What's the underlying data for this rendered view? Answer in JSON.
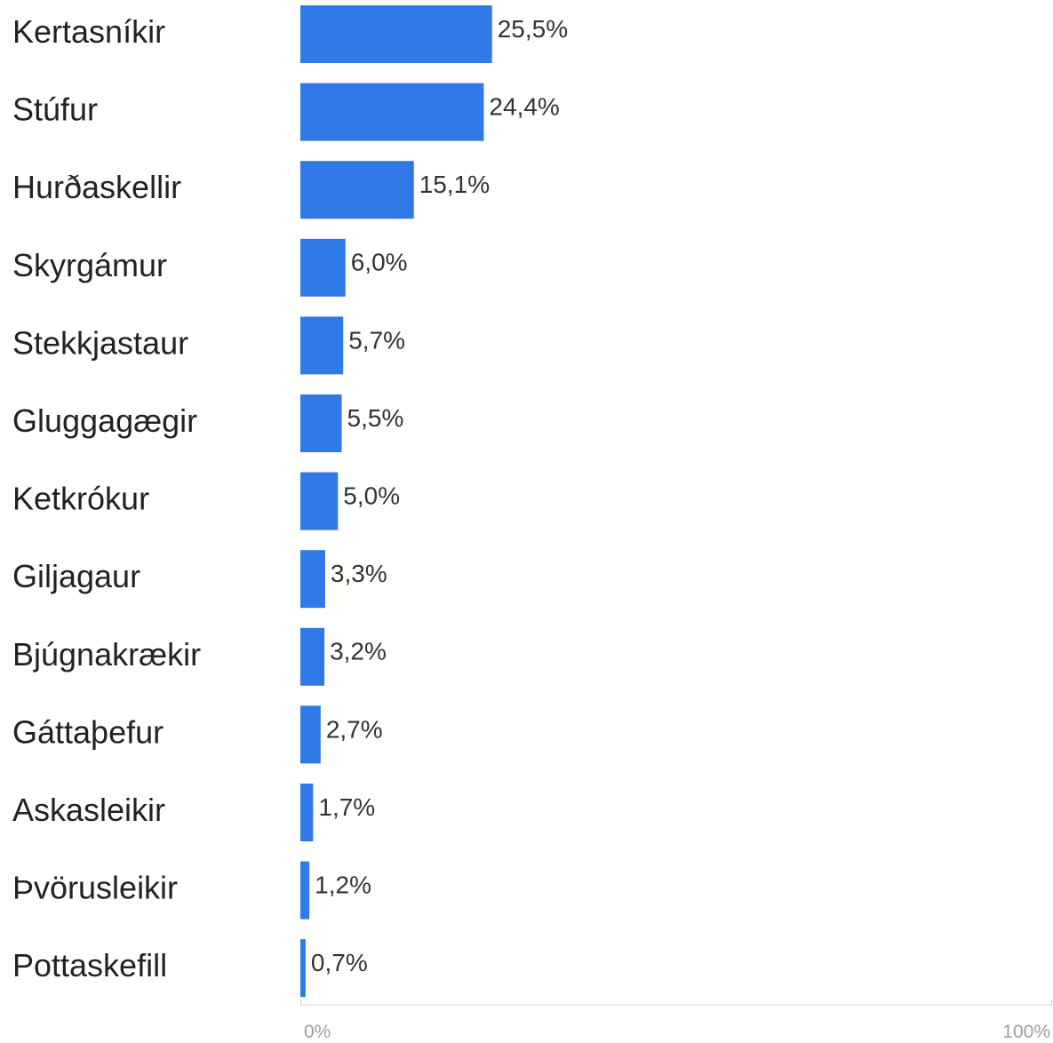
{
  "chart_data": {
    "type": "bar",
    "orientation": "horizontal",
    "categories": [
      "Kertasníkir",
      "Stúfur",
      "Hurðaskellir",
      "Skyrgámur",
      "Stekkjastaur",
      "Gluggagægir",
      "Ketkrókur",
      "Giljagaur",
      "Bjúgnakrækir",
      "Gáttaþefur",
      "Askasleikir",
      "Þvörusleikir",
      "Pottaskefill"
    ],
    "values": [
      25.5,
      24.4,
      15.1,
      6.0,
      5.7,
      5.5,
      5.0,
      3.3,
      3.2,
      2.7,
      1.7,
      1.2,
      0.7
    ],
    "value_labels": [
      "25,5%",
      "24,4%",
      "15,1%",
      "6,0%",
      "5,7%",
      "5,5%",
      "5,0%",
      "3,3%",
      "3,2%",
      "2,7%",
      "1,7%",
      "1,2%",
      "0,7%"
    ],
    "xlim": [
      0,
      100
    ],
    "x_tick_labels": [
      "0%",
      "100%"
    ],
    "grid": false,
    "bar_color": "#3179e6"
  }
}
